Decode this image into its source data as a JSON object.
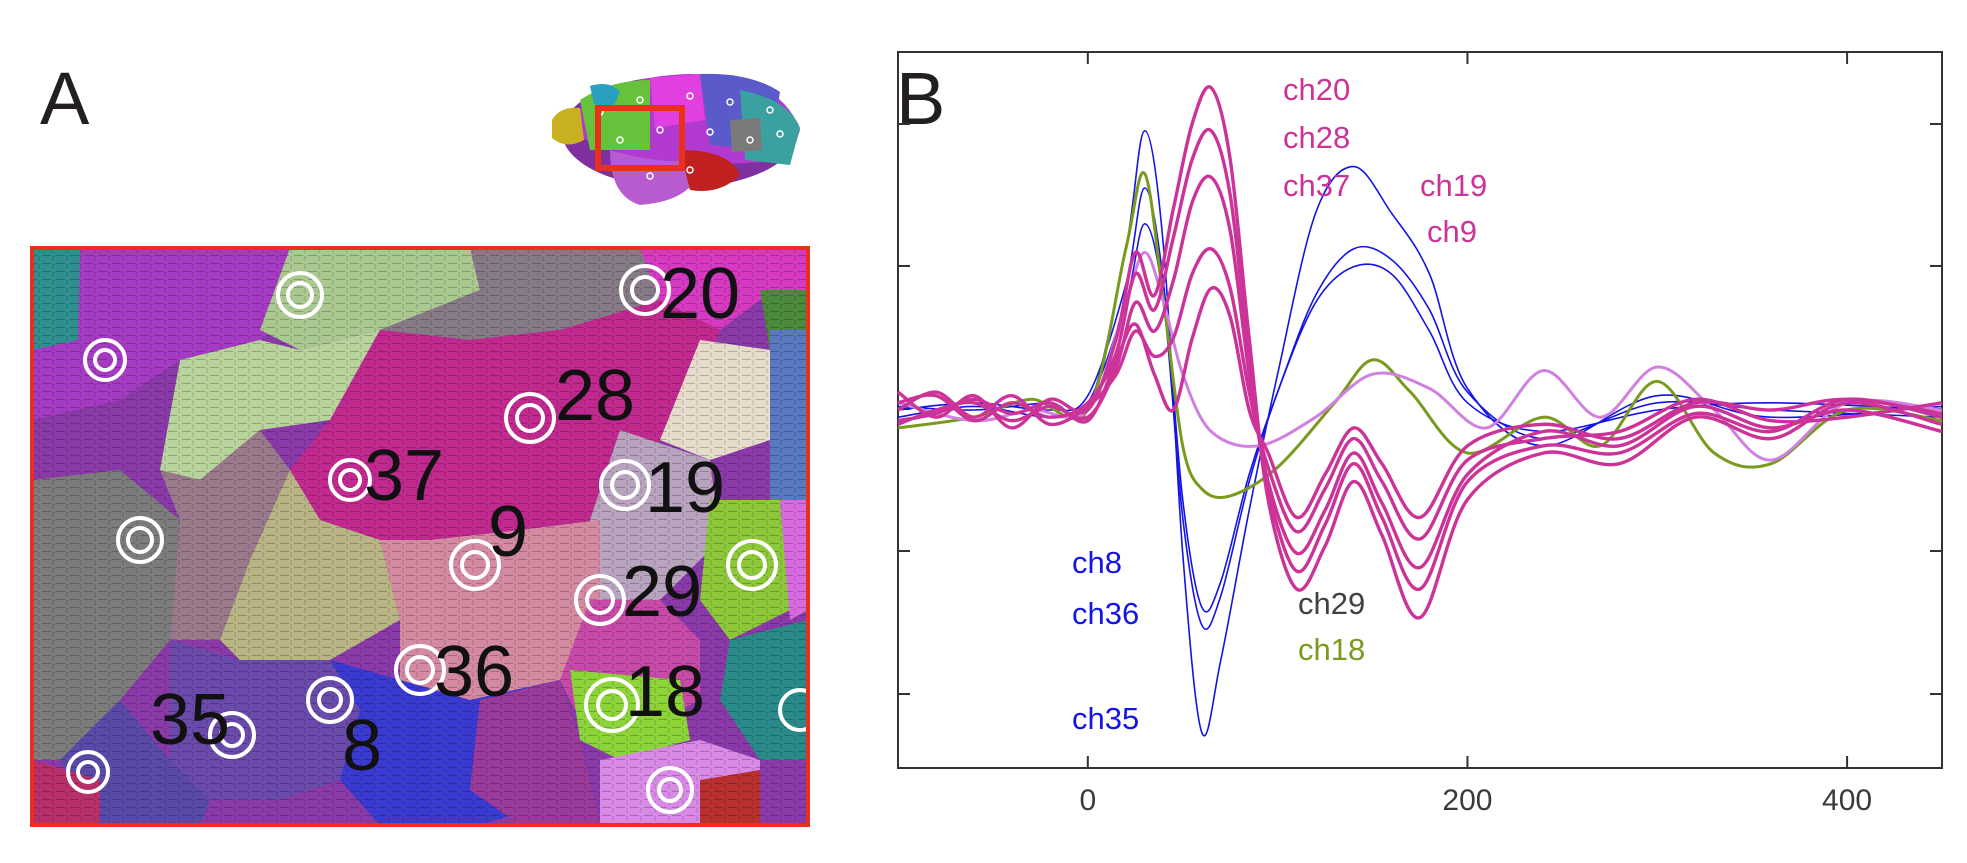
{
  "panels": {
    "a": {
      "letter": "A"
    },
    "b": {
      "letter": "B"
    }
  },
  "colors": {
    "blue": "#1414e6",
    "magenta": "#cc3399",
    "olive": "#7a9a1e",
    "lilac": "#d080e0",
    "gray_text": "#404040",
    "inset_frame": "#e8301c"
  },
  "brain_map": {
    "region_labels": [
      {
        "id": "20",
        "text": "20"
      },
      {
        "id": "28",
        "text": "28"
      },
      {
        "id": "37",
        "text": "37"
      },
      {
        "id": "19",
        "text": "19"
      },
      {
        "id": "9",
        "text": "9"
      },
      {
        "id": "29",
        "text": "29"
      },
      {
        "id": "36",
        "text": "36"
      },
      {
        "id": "18",
        "text": "18"
      },
      {
        "id": "35",
        "text": "35"
      },
      {
        "id": "8",
        "text": "8"
      }
    ]
  },
  "chart_data": {
    "type": "line",
    "title": "",
    "xlabel": "",
    "ylabel": "",
    "xlim": [
      -100,
      450
    ],
    "ylim": [
      -1.0,
      1.0
    ],
    "x_ticks": [
      0,
      200,
      400
    ],
    "x_tick_labels": [
      "0",
      "200",
      "400"
    ],
    "grid": false,
    "channel_labels": [
      {
        "id": "ch20",
        "text": "ch20",
        "color": "magenta"
      },
      {
        "id": "ch28",
        "text": "ch28",
        "color": "magenta"
      },
      {
        "id": "ch37",
        "text": "ch37",
        "color": "magenta"
      },
      {
        "id": "ch19",
        "text": "ch19",
        "color": "magenta"
      },
      {
        "id": "ch9",
        "text": "ch9",
        "color": "magenta"
      },
      {
        "id": "ch8",
        "text": "ch8",
        "color": "blue"
      },
      {
        "id": "ch36",
        "text": "ch36",
        "color": "blue"
      },
      {
        "id": "ch35",
        "text": "ch35",
        "color": "blue"
      },
      {
        "id": "ch29",
        "text": "ch29",
        "color": "gray_text"
      },
      {
        "id": "ch18",
        "text": "ch18",
        "color": "olive"
      }
    ],
    "series": [
      {
        "name": "ch8",
        "color": "blue",
        "weight": "thin",
        "x": [
          -100,
          -60,
          -20,
          0,
          20,
          30,
          40,
          50,
          60,
          70,
          85,
          100,
          120,
          140,
          160,
          180,
          200,
          240,
          300,
          360,
          450
        ],
        "y": [
          0.0,
          0.02,
          0.0,
          0.04,
          0.35,
          0.62,
          0.35,
          -0.25,
          -0.55,
          -0.48,
          -0.18,
          0.05,
          0.32,
          0.45,
          0.42,
          0.28,
          0.05,
          -0.08,
          0.02,
          0.0,
          -0.02
        ]
      },
      {
        "name": "ch36",
        "color": "blue",
        "weight": "thin",
        "x": [
          -100,
          -60,
          -20,
          0,
          20,
          30,
          40,
          50,
          60,
          70,
          85,
          100,
          120,
          140,
          160,
          180,
          200,
          240,
          300,
          360,
          450
        ],
        "y": [
          -0.02,
          0.01,
          -0.02,
          0.02,
          0.3,
          0.52,
          0.3,
          -0.3,
          -0.6,
          -0.52,
          -0.2,
          0.05,
          0.3,
          0.4,
          0.38,
          0.22,
          0.02,
          -0.06,
          0.0,
          0.02,
          0.0
        ]
      },
      {
        "name": "ch35",
        "color": "blue",
        "weight": "thin",
        "x": [
          -100,
          -60,
          -20,
          0,
          20,
          30,
          40,
          50,
          60,
          70,
          85,
          100,
          120,
          140,
          160,
          180,
          200,
          240,
          300,
          360,
          450
        ],
        "y": [
          0.01,
          0.0,
          0.02,
          0.0,
          0.45,
          0.78,
          0.45,
          -0.4,
          -0.9,
          -0.7,
          -0.28,
          0.1,
          0.55,
          0.68,
          0.55,
          0.38,
          0.06,
          -0.1,
          0.04,
          -0.02,
          0.01
        ]
      },
      {
        "name": "ch18",
        "color": "olive",
        "weight": "medium",
        "x": [
          -100,
          -60,
          -30,
          0,
          20,
          30,
          40,
          50,
          60,
          75,
          100,
          130,
          150,
          170,
          200,
          240,
          270,
          300,
          330,
          360,
          400,
          450
        ],
        "y": [
          -0.05,
          -0.02,
          0.03,
          0.0,
          0.45,
          0.66,
          0.3,
          -0.1,
          -0.22,
          -0.24,
          -0.16,
          0.02,
          0.14,
          0.05,
          -0.12,
          -0.02,
          -0.1,
          0.08,
          -0.12,
          -0.15,
          0.0,
          -0.03
        ]
      },
      {
        "name": "ch29",
        "color": "lilac",
        "weight": "medium",
        "x": [
          -100,
          -60,
          -30,
          0,
          20,
          30,
          40,
          50,
          65,
          90,
          120,
          150,
          180,
          210,
          240,
          270,
          300,
          330,
          360,
          400,
          450
        ],
        "y": [
          0.02,
          -0.03,
          0.0,
          0.0,
          0.3,
          0.44,
          0.3,
          0.1,
          -0.06,
          -0.1,
          -0.02,
          0.1,
          0.06,
          -0.05,
          0.11,
          -0.02,
          0.12,
          0.0,
          -0.14,
          0.02,
          0.0
        ]
      },
      {
        "name": "ch20",
        "color": "magenta",
        "weight": "thick",
        "x": [
          -100,
          -80,
          -60,
          -40,
          -20,
          0,
          15,
          25,
          35,
          45,
          55,
          65,
          75,
          85,
          95,
          110,
          125,
          140,
          155,
          175,
          200,
          240,
          280,
          320,
          360,
          400,
          450
        ],
        "y": [
          0.05,
          -0.02,
          0.04,
          -0.05,
          0.03,
          0.0,
          0.2,
          0.44,
          0.32,
          0.56,
          0.8,
          0.9,
          0.7,
          0.2,
          -0.25,
          -0.5,
          -0.38,
          -0.2,
          -0.35,
          -0.58,
          -0.25,
          -0.12,
          -0.15,
          -0.02,
          -0.08,
          0.02,
          -0.04
        ]
      },
      {
        "name": "ch28",
        "color": "magenta",
        "weight": "thick",
        "x": [
          -100,
          -80,
          -60,
          -40,
          -20,
          0,
          15,
          25,
          35,
          45,
          55,
          65,
          75,
          85,
          95,
          110,
          125,
          140,
          155,
          175,
          200,
          240,
          280,
          320,
          360,
          400,
          450
        ],
        "y": [
          0.02,
          0.04,
          -0.03,
          0.02,
          -0.02,
          0.02,
          0.16,
          0.38,
          0.28,
          0.48,
          0.7,
          0.78,
          0.6,
          0.15,
          -0.22,
          -0.45,
          -0.32,
          -0.15,
          -0.3,
          -0.5,
          -0.2,
          -0.1,
          -0.12,
          -0.01,
          -0.06,
          0.03,
          -0.02
        ]
      },
      {
        "name": "ch37",
        "color": "magenta",
        "weight": "thick",
        "x": [
          -100,
          -80,
          -60,
          -40,
          -20,
          0,
          15,
          25,
          35,
          45,
          55,
          65,
          75,
          85,
          95,
          110,
          125,
          140,
          155,
          175,
          200,
          240,
          280,
          320,
          360,
          400,
          450
        ],
        "y": [
          -0.04,
          0.0,
          0.02,
          -0.03,
          0.01,
          -0.02,
          0.12,
          0.3,
          0.22,
          0.36,
          0.58,
          0.65,
          0.5,
          0.1,
          -0.2,
          -0.4,
          -0.28,
          -0.12,
          -0.26,
          -0.44,
          -0.18,
          -0.06,
          -0.1,
          0.01,
          -0.05,
          0.0,
          -0.06
        ]
      },
      {
        "name": "ch19",
        "color": "magenta",
        "weight": "thick",
        "x": [
          -100,
          -80,
          -60,
          -40,
          -20,
          0,
          15,
          25,
          35,
          45,
          55,
          65,
          75,
          85,
          95,
          110,
          125,
          140,
          155,
          175,
          200,
          240,
          280,
          320,
          360,
          400,
          450
        ],
        "y": [
          0.0,
          0.05,
          -0.02,
          0.04,
          -0.04,
          0.01,
          0.1,
          0.22,
          0.15,
          0.2,
          0.38,
          0.45,
          0.34,
          0.05,
          -0.16,
          -0.34,
          -0.22,
          -0.08,
          -0.2,
          -0.36,
          -0.14,
          -0.08,
          -0.06,
          0.03,
          -0.03,
          -0.02,
          0.02
        ]
      },
      {
        "name": "ch9",
        "color": "magenta",
        "weight": "thick",
        "x": [
          -100,
          -80,
          -60,
          -40,
          -20,
          0,
          15,
          25,
          35,
          45,
          55,
          65,
          75,
          85,
          95,
          110,
          125,
          140,
          155,
          175,
          200,
          240,
          280,
          320,
          360,
          400,
          450
        ],
        "y": [
          -0.03,
          -0.01,
          0.03,
          -0.01,
          0.02,
          -0.03,
          0.14,
          0.24,
          0.1,
          0.0,
          0.2,
          0.34,
          0.26,
          0.0,
          -0.12,
          -0.3,
          -0.18,
          -0.05,
          -0.15,
          -0.3,
          -0.1,
          -0.04,
          -0.08,
          0.02,
          0.0,
          0.03,
          -0.01
        ]
      }
    ]
  }
}
